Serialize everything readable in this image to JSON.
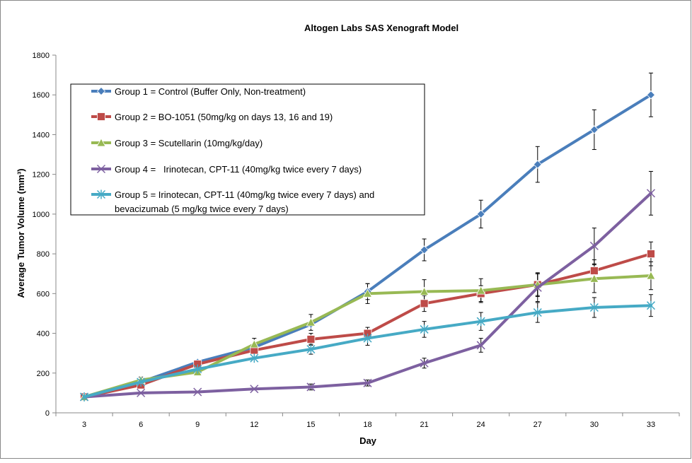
{
  "chart_data": {
    "type": "line",
    "title": "Altogen Labs SAS Xenograft Model",
    "xlabel": "Day",
    "ylabel": "Average Tumor Volume (mm³)",
    "x": [
      3,
      6,
      9,
      12,
      15,
      18,
      21,
      24,
      27,
      30,
      33
    ],
    "ylim": [
      0,
      1800
    ],
    "yticks": [
      0,
      200,
      400,
      600,
      800,
      1000,
      1200,
      1400,
      1600,
      1800
    ],
    "grid": false,
    "legend_position": "top-left",
    "series": [
      {
        "name": "Group 1 = Control (Buffer Only, Non-treatment)",
        "color": "#4a7ebb",
        "marker": "diamond",
        "values": [
          80,
          155,
          255,
          330,
          445,
          610,
          820,
          1000,
          1250,
          1425,
          1600
        ],
        "errors": [
          0,
          0,
          0,
          0,
          0,
          40,
          55,
          70,
          90,
          100,
          110
        ]
      },
      {
        "name": "Group 2 = BO-1051 (50mg/kg on days 13, 16 and 19)",
        "color": "#be4b48",
        "marker": "square",
        "values": [
          80,
          140,
          245,
          315,
          370,
          400,
          550,
          600,
          645,
          715,
          800
        ],
        "errors": [
          0,
          0,
          0,
          0,
          30,
          30,
          40,
          40,
          55,
          55,
          60
        ]
      },
      {
        "name": "Group 3 = Scutellarin (10mg/kg/day)",
        "color": "#98b954",
        "marker": "triangle",
        "values": [
          80,
          165,
          205,
          345,
          455,
          600,
          610,
          615,
          645,
          675,
          690
        ],
        "errors": [
          0,
          15,
          15,
          30,
          40,
          50,
          60,
          60,
          60,
          70,
          70
        ]
      },
      {
        "name": "Group 4 =   Irinotecan, CPT-11 (40mg/kg twice every 7 days)",
        "color": "#7d60a0",
        "marker": "x",
        "values": [
          80,
          100,
          105,
          120,
          130,
          150,
          250,
          340,
          630,
          840,
          1105
        ],
        "errors": [
          0,
          0,
          0,
          0,
          15,
          15,
          25,
          35,
          70,
          90,
          110
        ]
      },
      {
        "name": "Group 5 = Irinotecan, CPT-11 (40mg/kg twice every 7 days) and bevacizumab (5 mg/kg twice every 7 days)",
        "name_lines": [
          "Group 5 = Irinotecan, CPT-11 (40mg/kg twice every 7 days) and",
          "bevacizumab (5 mg/kg twice every 7 days)"
        ],
        "color": "#46aac5",
        "marker": "star",
        "values": [
          80,
          155,
          220,
          275,
          320,
          375,
          420,
          460,
          505,
          530,
          540
        ],
        "errors": [
          0,
          0,
          0,
          0,
          25,
          35,
          40,
          45,
          50,
          50,
          55
        ]
      }
    ]
  }
}
